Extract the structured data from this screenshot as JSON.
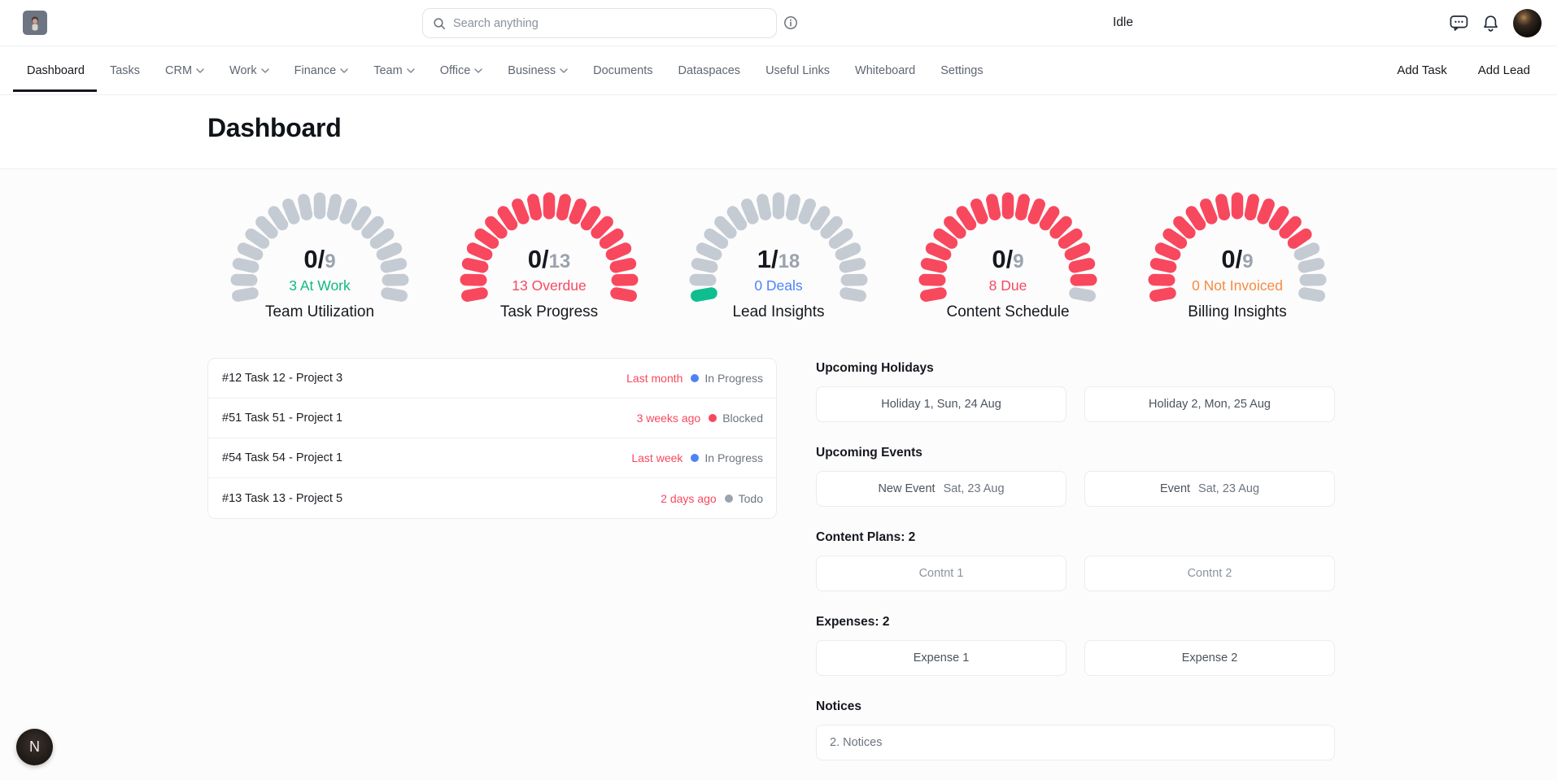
{
  "topbar": {
    "search_placeholder": "Search anything",
    "status_text": "Idle",
    "icons": [
      "app-logo",
      "search-icon",
      "info-icon",
      "chat-icon",
      "bell-icon",
      "avatar"
    ]
  },
  "nav": {
    "items": [
      {
        "label": "Dashboard",
        "active": true,
        "dropdown": false
      },
      {
        "label": "Tasks",
        "active": false,
        "dropdown": false
      },
      {
        "label": "CRM",
        "active": false,
        "dropdown": true
      },
      {
        "label": "Work",
        "active": false,
        "dropdown": true
      },
      {
        "label": "Finance",
        "active": false,
        "dropdown": true
      },
      {
        "label": "Team",
        "active": false,
        "dropdown": true
      },
      {
        "label": "Office",
        "active": false,
        "dropdown": true
      },
      {
        "label": "Business",
        "active": false,
        "dropdown": true
      },
      {
        "label": "Documents",
        "active": false,
        "dropdown": false
      },
      {
        "label": "Dataspaces",
        "active": false,
        "dropdown": false
      },
      {
        "label": "Useful Links",
        "active": false,
        "dropdown": false
      },
      {
        "label": "Whiteboard",
        "active": false,
        "dropdown": false
      },
      {
        "label": "Settings",
        "active": false,
        "dropdown": false
      }
    ],
    "actions": [
      "Add Task",
      "Add Lead"
    ]
  },
  "page": {
    "title": "Dashboard"
  },
  "gauges": [
    {
      "value": "0",
      "total": "9",
      "sub": "3 At Work",
      "sub_color": "#10b981",
      "name": "Team Utilization",
      "seg_total": 19,
      "seg_filled": 0,
      "filled_color": "#c5cbd3",
      "empty_color": "#c5cbd3"
    },
    {
      "value": "0",
      "total": "13",
      "sub": "13 Overdue",
      "sub_color": "#f8485e",
      "name": "Task Progress",
      "seg_total": 19,
      "seg_filled": 19,
      "filled_color": "#f8485e",
      "empty_color": "#c5cbd3"
    },
    {
      "value": "1",
      "total": "18",
      "sub": "0 Deals",
      "sub_color": "#4e83f5",
      "name": "Lead Insights",
      "seg_total": 19,
      "seg_filled": 1,
      "filled_color": "#0fbe8f",
      "empty_color": "#c5cbd3"
    },
    {
      "value": "0",
      "total": "9",
      "sub": "8 Due",
      "sub_color": "#f8485e",
      "name": "Content Schedule",
      "seg_total": 19,
      "seg_filled": 18,
      "filled_color": "#f8485e",
      "empty_color": "#c5cbd3"
    },
    {
      "value": "0",
      "total": "9",
      "sub": "0 Not Invoiced",
      "sub_color": "#f78b3d",
      "name": "Billing Insights",
      "seg_total": 19,
      "seg_filled": 15,
      "filled_color": "#f8485e",
      "empty_color": "#c5cbd3"
    }
  ],
  "tasks": [
    {
      "title": "#12 Task 12 - Project 3",
      "time": "Last month",
      "status": "In Progress",
      "dot_color": "#4e83f5"
    },
    {
      "title": "#51 Task 51 - Project 1",
      "time": "3 weeks ago",
      "status": "Blocked",
      "dot_color": "#f8485e"
    },
    {
      "title": "#54 Task 54 - Project 1",
      "time": "Last week",
      "status": "In Progress",
      "dot_color": "#4e83f5"
    },
    {
      "title": "#13 Task 13 - Project 5",
      "time": "2 days ago",
      "status": "Todo",
      "dot_color": "#9ca3af"
    }
  ],
  "sidebar": {
    "holidays": {
      "heading": "Upcoming Holidays",
      "cards": [
        "Holiday 1, Sun, 24 Aug",
        "Holiday 2, Mon, 25 Aug"
      ]
    },
    "events": {
      "heading": "Upcoming Events",
      "cards": [
        {
          "name": "New Event",
          "date": "Sat, 23 Aug"
        },
        {
          "name": "Event",
          "date": "Sat, 23 Aug"
        }
      ]
    },
    "content_plans": {
      "heading": "Content Plans: 2",
      "cards": [
        "Contnt 1",
        "Contnt 2"
      ]
    },
    "expenses": {
      "heading": "Expenses: 2",
      "cards": [
        "Expense 1",
        "Expense 2"
      ]
    },
    "notices": {
      "heading": "Notices",
      "card": "2. Notices"
    }
  },
  "fab": {
    "label": "N"
  }
}
